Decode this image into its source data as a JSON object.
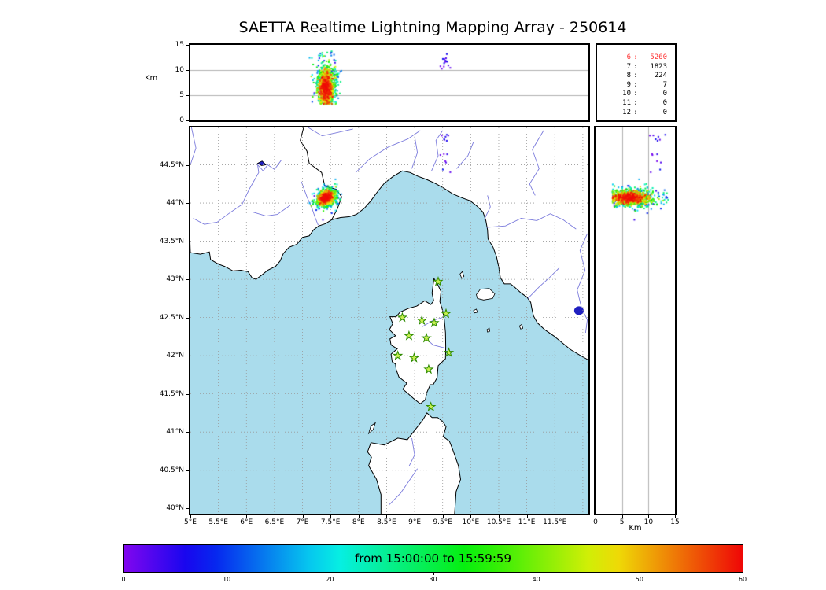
{
  "title": "SAETTA Realtime Lightning Mapping Array - 250614",
  "palette": {
    "sea": "#aadcec",
    "land": "#ffffff",
    "coastline": "#000000",
    "river": "#7b7bdc",
    "border": "#000000",
    "grid": "#999999",
    "lake": "#2020c0",
    "station_fill": "#c8f050",
    "station_edge": "#2e8b00",
    "highlight_red": "#ff3333",
    "panel_gridline": "#b0b0b0",
    "text": "#000000"
  },
  "chart_data": [
    {
      "type": "scatter",
      "name": "vhf-sources-longitude-altitude",
      "ylabel": "Km",
      "xlim": [
        5.0,
        12.1
      ],
      "ylim": [
        0,
        15
      ],
      "ytick_labels": [
        "15",
        "10",
        "5",
        "0"
      ],
      "gridlines_alt_km": [
        5,
        10
      ],
      "series_note": "lightning VHF sources colored by time; storm cell column near 7.4E from 3.5 to 13.5 km, red core 4.5-8.5 km"
    },
    {
      "type": "table",
      "name": "source-counts-by-contributing-stations",
      "columns": [
        "min_stations",
        "count"
      ],
      "rows": [
        [
          "6",
          "5260"
        ],
        [
          "7",
          "1823"
        ],
        [
          "8",
          "224"
        ],
        [
          "9",
          "7"
        ],
        [
          "10",
          "0"
        ],
        [
          "11",
          "0"
        ],
        [
          "12",
          "0"
        ]
      ],
      "highlight_row": 0
    },
    {
      "type": "scatter",
      "name": "plan-view-map",
      "xlim": [
        5.0,
        12.1
      ],
      "ylim": [
        39.93,
        44.99
      ],
      "lon_tick_labels": [
        "5°E",
        "5.5°E",
        "6°E",
        "6.5°E",
        "7°E",
        "7.5°E",
        "8°E",
        "8.5°E",
        "9°E",
        "9.5°E",
        "10°E",
        "10.5°E",
        "11°E",
        "11.5°E"
      ],
      "lat_tick_labels": [
        "44.5°N",
        "44°N",
        "43.5°N",
        "43°N",
        "42.5°N",
        "42°N",
        "41.5°N",
        "41°N",
        "40.5°N",
        "40°N"
      ],
      "grid_step_deg": 0.5,
      "storm_cluster": {
        "lon": 7.42,
        "lat": 44.07,
        "lon_sigma": 0.11,
        "lat_sigma": 0.07,
        "alt_mean_km": 6.3,
        "alt_sigma_km": 1.9,
        "count": 1500
      },
      "stray_sources": {
        "lon": 9.55,
        "lon_sigma": 0.05,
        "lat_min": 44.25,
        "lat_max": 44.9,
        "alt_min_km": 10,
        "alt_max_km": 13.5,
        "count": 14,
        "time_min": 0,
        "time_max": 8
      },
      "stations_lon_lat": [
        [
          9.42,
          42.97
        ],
        [
          8.78,
          42.5
        ],
        [
          9.13,
          42.46
        ],
        [
          9.56,
          42.55
        ],
        [
          9.35,
          42.43
        ],
        [
          8.9,
          42.26
        ],
        [
          9.21,
          42.23
        ],
        [
          8.7,
          42.0
        ],
        [
          9.61,
          42.04
        ],
        [
          9.25,
          41.82
        ],
        [
          8.99,
          41.97
        ],
        [
          9.29,
          41.33
        ]
      ]
    },
    {
      "type": "scatter",
      "name": "vhf-sources-altitude-latitude",
      "xlabel": "Km",
      "xlim": [
        0,
        15
      ],
      "xtick_labels": [
        "0",
        "5",
        "10",
        "15"
      ],
      "gridlines_alt_km": [
        5,
        10
      ]
    },
    {
      "type": "colorbar",
      "name": "time-colorbar",
      "label": "from 15:00:00 to 15:59:59",
      "range_minutes": [
        0,
        60
      ],
      "tick_labels": [
        "0",
        "10",
        "20",
        "30",
        "40",
        "50",
        "60"
      ],
      "colormap": "rainbow-purple-to-red"
    }
  ]
}
